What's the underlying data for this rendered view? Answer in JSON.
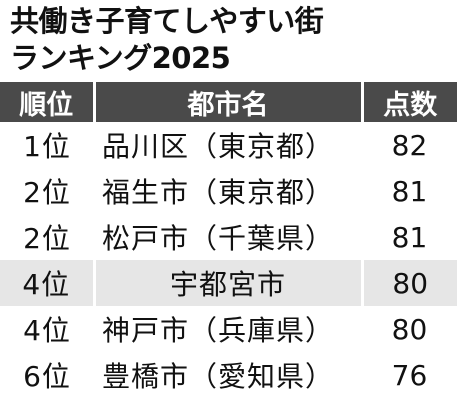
{
  "title": {
    "line1": "共働き子育てしやすい街",
    "line2": "ランキング2025"
  },
  "table": {
    "headers": [
      "順位",
      "都市名",
      "点数"
    ],
    "rows": [
      {
        "rank": "1位",
        "city": "品川区（東京都）",
        "score": "82"
      },
      {
        "rank": "2位",
        "city": "福生市（東京都）",
        "score": "81"
      },
      {
        "rank": "2位",
        "city": "松戸市（千葉県）",
        "score": "81"
      },
      {
        "rank": "4位",
        "city": "宇都宮市",
        "score": "80"
      },
      {
        "rank": "4位",
        "city": "神戸市（兵庫県）",
        "score": "80"
      },
      {
        "rank": "6位",
        "city": "豊橋市（愛知県）",
        "score": "76"
      }
    ],
    "highlight_row_color": "#e6e6e6",
    "header_color": "#4a4a4a"
  }
}
